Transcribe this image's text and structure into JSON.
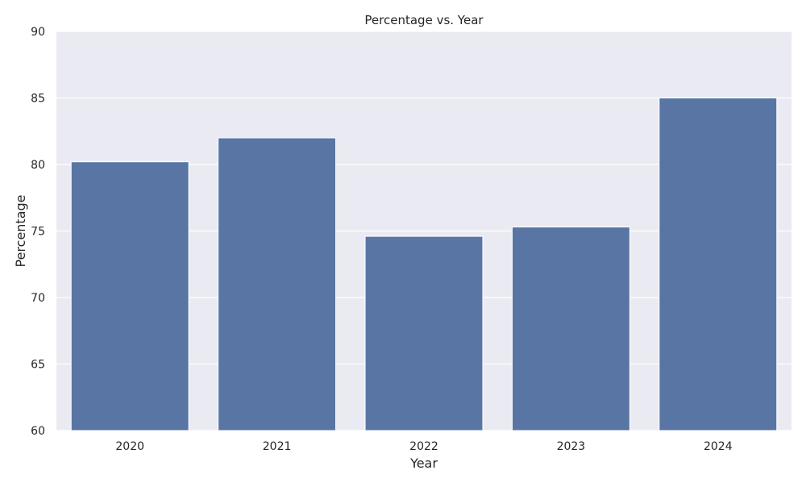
{
  "chart_data": {
    "type": "bar",
    "title": "Percentage vs. Year",
    "xlabel": "Year",
    "ylabel": "Percentage",
    "categories": [
      "2020",
      "2021",
      "2022",
      "2023",
      "2024"
    ],
    "values": [
      80.2,
      82.0,
      74.6,
      75.3,
      85.0
    ],
    "ylim": [
      60,
      90
    ],
    "yticks": [
      "60",
      "65",
      "70",
      "75",
      "80",
      "85",
      "90"
    ],
    "grid": true,
    "colors": {
      "bar": "#5875a4",
      "plot_background": "#eaeaf2",
      "grid": "#ffffff"
    }
  }
}
